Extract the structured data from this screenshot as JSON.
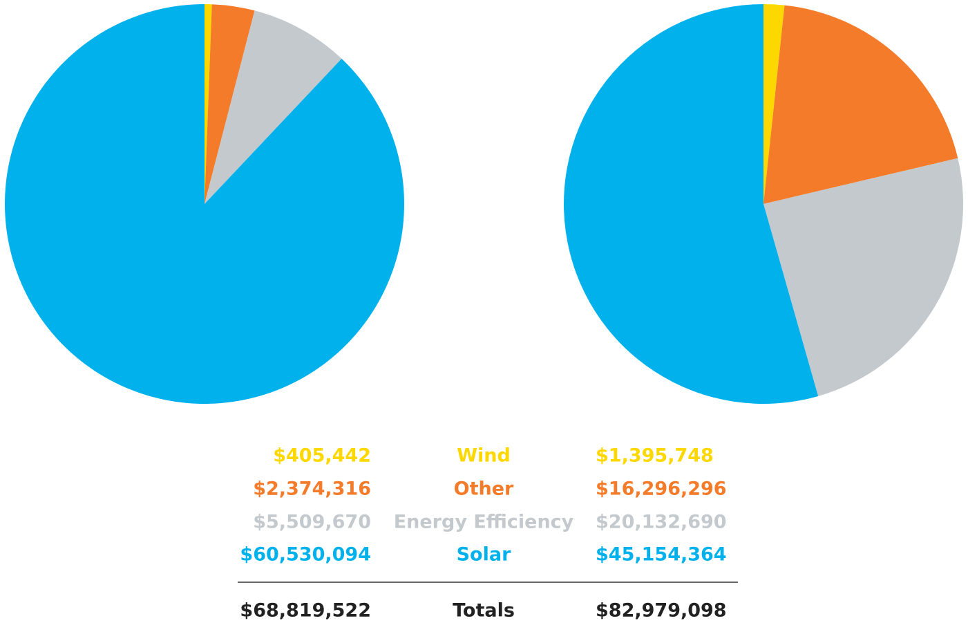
{
  "chart_data": [
    {
      "type": "pie",
      "categories": [
        "Wind",
        "Other",
        "Energy Efficiency",
        "Solar"
      ],
      "values": [
        405442,
        2374316,
        5509670,
        60530094
      ],
      "value_labels": [
        "$405,442",
        "$2,374,316",
        "$5,509,670",
        "$60,530,094"
      ],
      "colors": [
        "#fdd800",
        "#f47b2a",
        "#c4c9ce",
        "#00b1ec"
      ],
      "total": {
        "value": 68819522,
        "label": "$68,819,522"
      }
    },
    {
      "type": "pie",
      "categories": [
        "Wind",
        "Other",
        "Energy Efficiency",
        "Solar"
      ],
      "values": [
        1395748,
        16296296,
        20132690,
        45154364
      ],
      "value_labels": [
        "$1,395,748",
        "$16,296,296",
        "$20,132,690",
        "$45,154,364"
      ],
      "colors": [
        "#fdd800",
        "#f47b2a",
        "#c4c9ce",
        "#00b1ec"
      ],
      "total": {
        "value": 82979098,
        "label": "$82,979,098"
      }
    }
  ],
  "total_label": "Totals"
}
